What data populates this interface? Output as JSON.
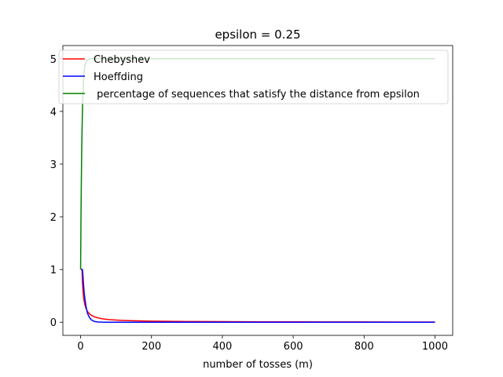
{
  "chart_data": {
    "type": "line",
    "title": "epsilon = 0.25",
    "xlabel": "number of tosses (m)",
    "ylabel": "",
    "xlim": [
      -50,
      1050
    ],
    "ylim": [
      -0.25,
      5.25
    ],
    "xticks": [
      0,
      200,
      400,
      600,
      800,
      1000
    ],
    "yticks": [
      0,
      1,
      2,
      3,
      4,
      5
    ],
    "grid": false,
    "legend_position": "top-right",
    "series": [
      {
        "name": "Chebyshev",
        "color": "#ff0000",
        "x": [
          1,
          3,
          4,
          5,
          6,
          8,
          10,
          12,
          15,
          18,
          20,
          25,
          30,
          35,
          40,
          50,
          60,
          70,
          80,
          100,
          120,
          150,
          200,
          250,
          300,
          400,
          500,
          600,
          700,
          800,
          900,
          1000
        ],
        "y": [
          1.0,
          1.0,
          1.0,
          0.8,
          0.667,
          0.5,
          0.4,
          0.333,
          0.267,
          0.222,
          0.2,
          0.16,
          0.133,
          0.114,
          0.1,
          0.08,
          0.067,
          0.057,
          0.05,
          0.04,
          0.033,
          0.027,
          0.02,
          0.016,
          0.013,
          0.01,
          0.008,
          0.007,
          0.006,
          0.005,
          0.004,
          0.004
        ]
      },
      {
        "name": "Hoeffding",
        "color": "#0000ff",
        "x": [
          1,
          3,
          4,
          5,
          6,
          8,
          10,
          12,
          15,
          18,
          20,
          25,
          30,
          35,
          40,
          50,
          60,
          70,
          80,
          100,
          150,
          200,
          300,
          400,
          500,
          600,
          700,
          800,
          900,
          1000
        ],
        "y": [
          1.0,
          1.0,
          1.0,
          1.0,
          0.94,
          0.74,
          0.57,
          0.45,
          0.31,
          0.21,
          0.16,
          0.09,
          0.047,
          0.025,
          0.013,
          0.004,
          0.001,
          0.0,
          0.0,
          0.0,
          0.0,
          0.0,
          0.0,
          0.0,
          0.0,
          0.0,
          0.0,
          0.0,
          0.0,
          0.0
        ]
      },
      {
        "name": " percentage of sequences that satisfy the distance from epsilon",
        "color": "#008000",
        "x": [
          0,
          1,
          2,
          3,
          4,
          5,
          6,
          8,
          10,
          12,
          15,
          20,
          25,
          30,
          40,
          60,
          100,
          200,
          400,
          600,
          800,
          1000
        ],
        "y": [
          1.0,
          1.9,
          2.6,
          3.2,
          3.6,
          3.95,
          4.2,
          4.55,
          4.75,
          4.86,
          4.93,
          4.98,
          4.99,
          5.0,
          5.0,
          5.0,
          5.0,
          5.0,
          5.0,
          5.0,
          5.0,
          5.0
        ]
      }
    ]
  }
}
